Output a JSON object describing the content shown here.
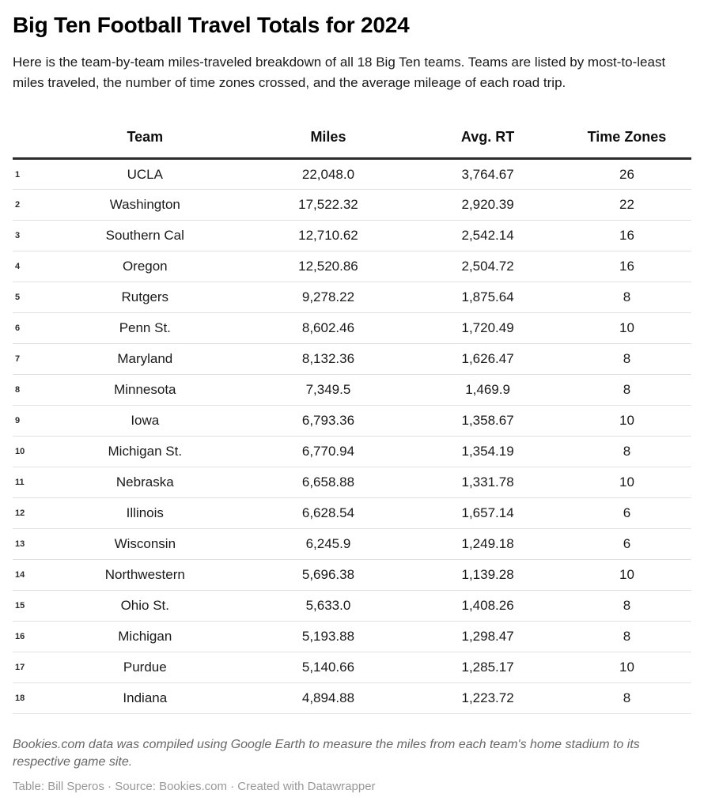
{
  "header": {
    "title": "Big Ten Football Travel Totals for 2024",
    "description": "Here is the team-by-team miles-traveled breakdown of all 18 Big Ten teams. Teams are listed by most-to-least miles traveled, the number of time zones crossed, and the average mileage of each road trip."
  },
  "chart_data": {
    "type": "table",
    "columns": [
      "Team",
      "Miles",
      "Avg. RT",
      "Time Zones"
    ],
    "rows": [
      {
        "rank": "1",
        "team": "UCLA",
        "miles": "22,048.0",
        "avg_rt": "3,764.67",
        "time_zones": "26"
      },
      {
        "rank": "2",
        "team": "Washington",
        "miles": "17,522.32",
        "avg_rt": "2,920.39",
        "time_zones": "22"
      },
      {
        "rank": "3",
        "team": "Southern Cal",
        "miles": "12,710.62",
        "avg_rt": "2,542.14",
        "time_zones": "16"
      },
      {
        "rank": "4",
        "team": "Oregon",
        "miles": "12,520.86",
        "avg_rt": "2,504.72",
        "time_zones": "16"
      },
      {
        "rank": "5",
        "team": "Rutgers",
        "miles": "9,278.22",
        "avg_rt": "1,875.64",
        "time_zones": "8"
      },
      {
        "rank": "6",
        "team": "Penn St.",
        "miles": "8,602.46",
        "avg_rt": "1,720.49",
        "time_zones": "10"
      },
      {
        "rank": "7",
        "team": "Maryland",
        "miles": "8,132.36",
        "avg_rt": "1,626.47",
        "time_zones": "8"
      },
      {
        "rank": "8",
        "team": "Minnesota",
        "miles": "7,349.5",
        "avg_rt": "1,469.9",
        "time_zones": "8"
      },
      {
        "rank": "9",
        "team": "Iowa",
        "miles": "6,793.36",
        "avg_rt": "1,358.67",
        "time_zones": "10"
      },
      {
        "rank": "10",
        "team": "Michigan St.",
        "miles": "6,770.94",
        "avg_rt": "1,354.19",
        "time_zones": "8"
      },
      {
        "rank": "11",
        "team": "Nebraska",
        "miles": "6,658.88",
        "avg_rt": "1,331.78",
        "time_zones": "10"
      },
      {
        "rank": "12",
        "team": "Illinois",
        "miles": "6,628.54",
        "avg_rt": "1,657.14",
        "time_zones": "6"
      },
      {
        "rank": "13",
        "team": "Wisconsin",
        "miles": "6,245.9",
        "avg_rt": "1,249.18",
        "time_zones": "6"
      },
      {
        "rank": "14",
        "team": "Northwestern",
        "miles": "5,696.38",
        "avg_rt": "1,139.28",
        "time_zones": "10"
      },
      {
        "rank": "15",
        "team": "Ohio St.",
        "miles": "5,633.0",
        "avg_rt": "1,408.26",
        "time_zones": "8"
      },
      {
        "rank": "16",
        "team": "Michigan",
        "miles": "5,193.88",
        "avg_rt": "1,298.47",
        "time_zones": "8"
      },
      {
        "rank": "17",
        "team": "Purdue",
        "miles": "5,140.66",
        "avg_rt": "1,285.17",
        "time_zones": "10"
      },
      {
        "rank": "18",
        "team": "Indiana",
        "miles": "4,894.88",
        "avg_rt": "1,223.72",
        "time_zones": "8"
      }
    ],
    "title": "Big Ten Football Travel Totals for 2024",
    "layout_hints": {
      "sorted_by": "miles descending",
      "rank_column": true,
      "grid": "horizontal row dividers"
    }
  },
  "footer": {
    "note": "Bookies.com data was compiled using Google Earth to measure the miles from each team's home stadium to its respective game site.",
    "attribution": "Table: Bill Speros · Source: Bookies.com · Created with Datawrapper"
  },
  "colors": {
    "background": "#ffffff",
    "text": "#1a1a1a",
    "header_rule": "#2b2b2b",
    "row_divider": "#e1e1e1",
    "note_text": "#676767",
    "attribution_text": "#989898"
  }
}
